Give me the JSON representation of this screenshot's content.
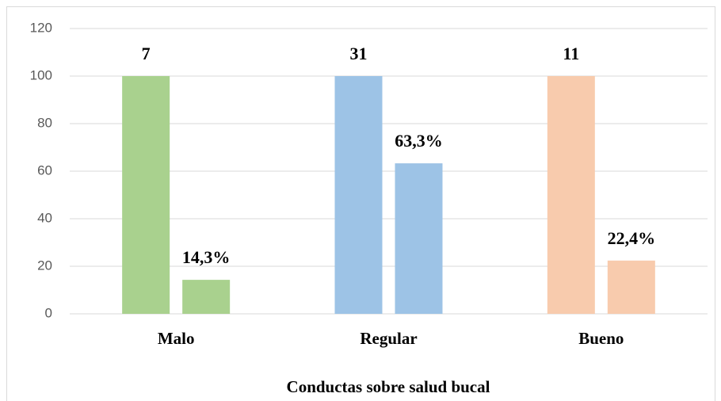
{
  "chart_data": {
    "type": "bar",
    "x_label": "Conductas sobre salud bucal",
    "categories": [
      "Malo",
      "Regular",
      "Bueno"
    ],
    "colors": [
      "#a9d18e",
      "#9dc3e6",
      "#f8cbad"
    ],
    "counts": [
      7,
      31,
      11
    ],
    "series": [
      {
        "values": [
          100,
          100,
          100
        ]
      },
      {
        "values": [
          14.3,
          63.3,
          22.4
        ],
        "value_labels": [
          "14,3%",
          "63,3%",
          "22,4%"
        ]
      }
    ],
    "ylim": [
      0,
      120
    ],
    "yticks": [
      0,
      20,
      40,
      60,
      80,
      100,
      120
    ],
    "grid": true
  }
}
